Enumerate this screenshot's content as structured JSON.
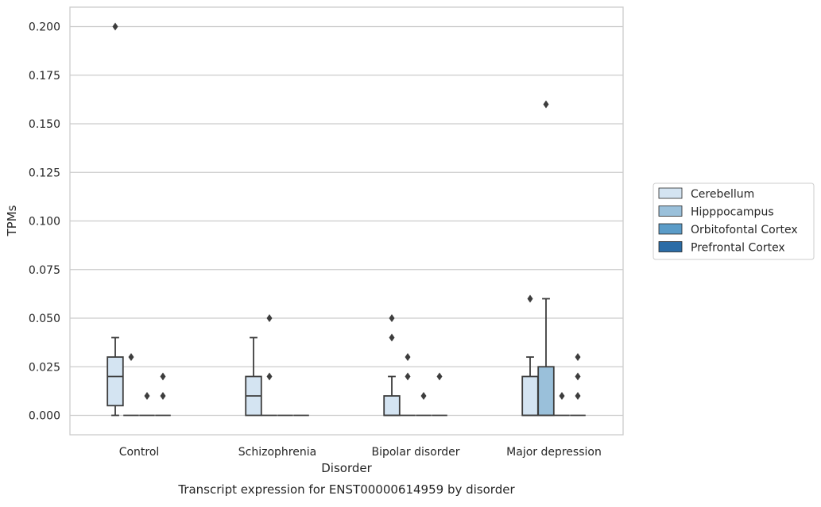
{
  "chart_data": {
    "type": "box",
    "caption": "Transcript expression for ENST00000614959 by disorder",
    "xlabel": "Disorder",
    "ylabel": "TPMs",
    "ylim": [
      -0.01,
      0.21
    ],
    "yticks": [
      0.0,
      0.025,
      0.05,
      0.075,
      0.1,
      0.125,
      0.15,
      0.175,
      0.2
    ],
    "ytick_labels": [
      "0.000",
      "0.025",
      "0.050",
      "0.075",
      "0.100",
      "0.125",
      "0.150",
      "0.175",
      "0.200"
    ],
    "grid": "horizontal",
    "legend_position": "right-outside",
    "categories": [
      "Control",
      "Schizophrenia",
      "Bipolar disorder",
      "Major depression"
    ],
    "series": [
      {
        "name": "Cerebellum",
        "color": "#d4e4f2",
        "boxes": [
          {
            "q1": 0.005,
            "median": 0.02,
            "q3": 0.03,
            "whisker_low": 0.0,
            "whisker_high": 0.04,
            "outliers": [
              0.2
            ]
          },
          {
            "q1": 0.0,
            "median": 0.01,
            "q3": 0.02,
            "whisker_low": 0.0,
            "whisker_high": 0.04,
            "outliers": []
          },
          {
            "q1": 0.0,
            "median": 0.0,
            "q3": 0.01,
            "whisker_low": 0.0,
            "whisker_high": 0.02,
            "outliers": [
              0.04,
              0.05
            ]
          },
          {
            "q1": 0.0,
            "median": 0.0,
            "q3": 0.02,
            "whisker_low": 0.0,
            "whisker_high": 0.03,
            "outliers": [
              0.06
            ]
          }
        ]
      },
      {
        "name": "Hipppocampus",
        "color": "#9ac0da",
        "boxes": [
          {
            "q1": 0.0,
            "median": 0.0,
            "q3": 0.0,
            "whisker_low": 0.0,
            "whisker_high": 0.0,
            "outliers": [
              0.03
            ]
          },
          {
            "q1": 0.0,
            "median": 0.0,
            "q3": 0.0,
            "whisker_low": 0.0,
            "whisker_high": 0.0,
            "outliers": [
              0.02,
              0.05
            ]
          },
          {
            "q1": 0.0,
            "median": 0.0,
            "q3": 0.0,
            "whisker_low": 0.0,
            "whisker_high": 0.0,
            "outliers": [
              0.02,
              0.03
            ]
          },
          {
            "q1": 0.0,
            "median": 0.0,
            "q3": 0.025,
            "whisker_low": 0.0,
            "whisker_high": 0.06,
            "outliers": [
              0.16
            ]
          }
        ]
      },
      {
        "name": "Orbitofontal Cortex",
        "color": "#5b9cc8",
        "boxes": [
          {
            "q1": 0.0,
            "median": 0.0,
            "q3": 0.0,
            "whisker_low": 0.0,
            "whisker_high": 0.0,
            "outliers": [
              0.01
            ]
          },
          {
            "q1": 0.0,
            "median": 0.0,
            "q3": 0.0,
            "whisker_low": 0.0,
            "whisker_high": 0.0,
            "outliers": []
          },
          {
            "q1": 0.0,
            "median": 0.0,
            "q3": 0.0,
            "whisker_low": 0.0,
            "whisker_high": 0.0,
            "outliers": [
              0.01
            ]
          },
          {
            "q1": 0.0,
            "median": 0.0,
            "q3": 0.0,
            "whisker_low": 0.0,
            "whisker_high": 0.0,
            "outliers": [
              0.01
            ]
          }
        ]
      },
      {
        "name": "Prefrontal Cortex",
        "color": "#2b6ca6",
        "boxes": [
          {
            "q1": 0.0,
            "median": 0.0,
            "q3": 0.0,
            "whisker_low": 0.0,
            "whisker_high": 0.0,
            "outliers": [
              0.01,
              0.02
            ]
          },
          {
            "q1": 0.0,
            "median": 0.0,
            "q3": 0.0,
            "whisker_low": 0.0,
            "whisker_high": 0.0,
            "outliers": []
          },
          {
            "q1": 0.0,
            "median": 0.0,
            "q3": 0.0,
            "whisker_low": 0.0,
            "whisker_high": 0.0,
            "outliers": [
              0.02
            ]
          },
          {
            "q1": 0.0,
            "median": 0.0,
            "q3": 0.0,
            "whisker_low": 0.0,
            "whisker_high": 0.0,
            "outliers": [
              0.01,
              0.02,
              0.03
            ]
          }
        ]
      }
    ]
  }
}
